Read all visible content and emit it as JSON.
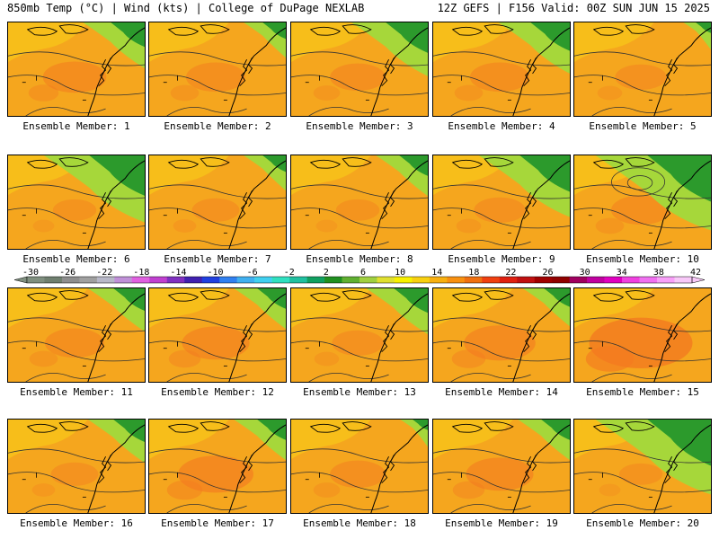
{
  "header": {
    "left": "850mb Temp (°C) | Wind (kts) | College of DuPage NEXLAB",
    "right": "12Z GEFS | F156 Valid: 00Z SUN JUN 15 2025"
  },
  "colors": {
    "base_warm": "#f5a61e",
    "warm_mid": "#f7c21a",
    "hot": "#f37a20",
    "cool_green": "#2c9a2c",
    "lime": "#a6d73a",
    "contour": "#333333",
    "coast": "#000000"
  },
  "members": [
    {
      "label": "Ensemble Member: 1",
      "green": 0.45,
      "hot": 0.35
    },
    {
      "label": "Ensemble Member: 2",
      "green": 0.25,
      "hot": 0.3
    },
    {
      "label": "Ensemble Member: 3",
      "green": 0.6,
      "hot": 0.25
    },
    {
      "label": "Ensemble Member: 4",
      "green": 0.55,
      "hot": 0.3
    },
    {
      "label": "Ensemble Member: 5",
      "green": 0.1,
      "hot": 0.2
    },
    {
      "label": "Ensemble Member: 6",
      "green": 0.85,
      "hot": 0.1
    },
    {
      "label": "Ensemble Member: 7",
      "green": 0.25,
      "hot": 0.15
    },
    {
      "label": "Ensemble Member: 8",
      "green": 0.35,
      "hot": 0.1
    },
    {
      "label": "Ensemble Member: 9",
      "green": 0.75,
      "hot": 0.2
    },
    {
      "label": "Ensemble Member: 10",
      "green": 1.0,
      "hot": 0.3
    },
    {
      "label": "Ensemble Member: 11",
      "green": 0.4,
      "hot": 0.3
    },
    {
      "label": "Ensemble Member: 12",
      "green": 0.35,
      "hot": 0.4
    },
    {
      "label": "Ensemble Member: 13",
      "green": 0.45,
      "hot": 0.2
    },
    {
      "label": "Ensemble Member: 14",
      "green": 0.3,
      "hot": 0.45
    },
    {
      "label": "Ensemble Member: 15",
      "green": 0.0,
      "hot": 0.85
    },
    {
      "label": "Ensemble Member: 16",
      "green": 0.4,
      "hot": 0.15
    },
    {
      "label": "Ensemble Member: 17",
      "green": 0.35,
      "hot": 0.5
    },
    {
      "label": "Ensemble Member: 18",
      "green": 0.1,
      "hot": 0.25
    },
    {
      "label": "Ensemble Member: 19",
      "green": 0.35,
      "hot": 0.4
    },
    {
      "label": "Ensemble Member: 20",
      "green": 1.0,
      "hot": 0.1
    }
  ],
  "colorbar": {
    "labels": [
      "-30",
      "-26",
      "-22",
      "-18",
      "-14",
      "-10",
      "-6",
      "-2",
      "2",
      "6",
      "10",
      "14",
      "18",
      "22",
      "26",
      "30",
      "34",
      "38",
      "42"
    ],
    "colors": [
      "#7f8f7f",
      "#6f7f6f",
      "#8e8e8e",
      "#a0a0a0",
      "#b8b8c8",
      "#c090d8",
      "#e060e0",
      "#c040d0",
      "#8030c0",
      "#4020b0",
      "#2040e0",
      "#3080f0",
      "#40b0f0",
      "#40d0f0",
      "#30e0c0",
      "#20c0a0",
      "#10a060",
      "#209020",
      "#60b030",
      "#a0d040",
      "#e0e030",
      "#f8f000",
      "#f8d010",
      "#f8b010",
      "#f89010",
      "#f07010",
      "#f04010",
      "#e02010",
      "#c01010",
      "#a00000",
      "#900000",
      "#a00060",
      "#c000a0",
      "#e000c0",
      "#f040e0",
      "#f070f0",
      "#f8a0f8",
      "#f8c8f8"
    ]
  }
}
